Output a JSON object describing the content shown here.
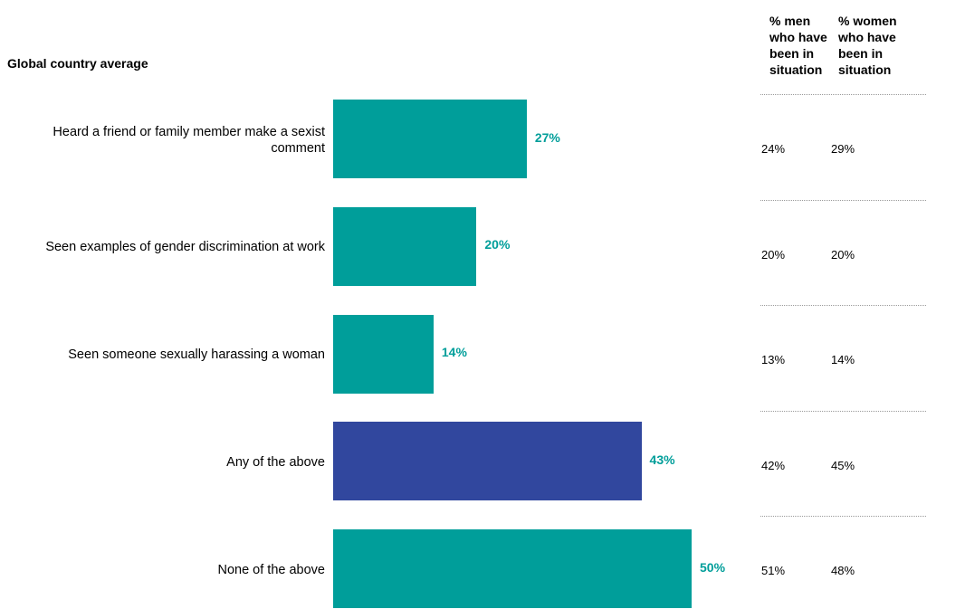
{
  "chart_data": {
    "type": "bar",
    "orientation": "horizontal",
    "title": "Global country average",
    "categories": [
      "Heard a friend or family member make a sexist comment",
      "Seen examples of gender discrimination at work",
      "Seen someone sexually harassing a woman",
      "Any of the above",
      "None of the above"
    ],
    "values": [
      27,
      20,
      14,
      43,
      50
    ],
    "value_labels": [
      "27%",
      "20%",
      "14%",
      "43%",
      "50%"
    ],
    "bar_colors": [
      "#009e9a",
      "#009e9a",
      "#009e9a",
      "#31479e",
      "#009e9a"
    ],
    "label_color": "#009e9a",
    "xlim": [
      0,
      50
    ],
    "table": {
      "headers": [
        "% men who have been in situation",
        "% women who have been in situation"
      ],
      "men": [
        "24%",
        "20%",
        "13%",
        "42%",
        "51%"
      ],
      "women": [
        "29%",
        "20%",
        "14%",
        "45%",
        "48%"
      ]
    }
  }
}
